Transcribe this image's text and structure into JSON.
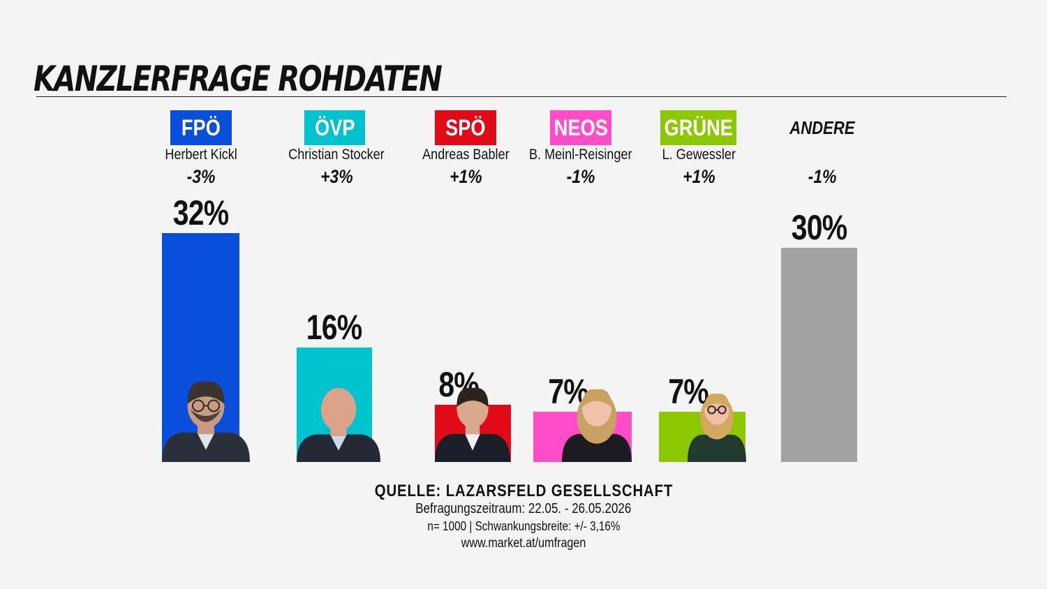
{
  "title": "KANZLERFRAGE ROHDATEN",
  "chart_data": {
    "type": "bar",
    "title": "KANZLERFRAGE ROHDATEN",
    "categories": [
      "FPÖ",
      "ÖVP",
      "SPÖ",
      "NEOS",
      "GRÜNE",
      "ANDERE"
    ],
    "candidates": [
      "Herbert Kickl",
      "Christian Stocker",
      "Andreas Babler",
      "B. Meinl-Reisinger",
      "L. Gewessler",
      ""
    ],
    "changes": [
      "-3%",
      "+3%",
      "+1%",
      "-1%",
      "+1%",
      "-1%"
    ],
    "values": [
      32,
      16,
      8,
      7,
      7,
      30
    ],
    "value_labels": [
      "32%",
      "16%",
      "8%",
      "7%",
      "7%",
      "30%"
    ],
    "colors": [
      "#0a4fdc",
      "#00c3cf",
      "#e10a17",
      "#ff4dc9",
      "#8cc800",
      "#a2a2a2"
    ],
    "portraits": [
      "man-glasses-beard",
      "older-man-bald",
      "man-dark-hair",
      "woman-blonde",
      "woman-glasses-blonde",
      ""
    ],
    "ylim": [
      0,
      32
    ],
    "grid": false,
    "legend": "none"
  },
  "source": {
    "line1": "QUELLE: LAZARSFELD GESELLSCHAFT",
    "line2": "Befragungszeitraum: 22.05. - 26.05.2026",
    "line3": "n= 1000 | Schwankungsbreite: +/- 3,16%",
    "line4": "www.market.at/umfragen"
  }
}
